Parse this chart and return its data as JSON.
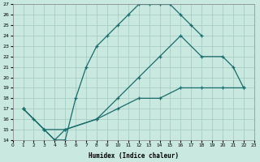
{
  "xlabel": "Humidex (Indice chaleur)",
  "ylabel": "",
  "bg_color": "#c8e8e0",
  "line_color": "#1a6b6b",
  "grid_color": "#a0c8c0",
  "xlim": [
    0,
    23
  ],
  "ylim": [
    14,
    27
  ],
  "xticks": [
    0,
    1,
    2,
    3,
    4,
    5,
    6,
    7,
    8,
    9,
    10,
    11,
    12,
    13,
    14,
    15,
    16,
    17,
    18,
    19,
    20,
    21,
    22,
    23
  ],
  "yticks": [
    14,
    15,
    16,
    17,
    18,
    19,
    20,
    21,
    22,
    23,
    24,
    25,
    26,
    27
  ],
  "line1_x": [
    1,
    2,
    3,
    4,
    5,
    6,
    7,
    8,
    9,
    10,
    11,
    12,
    13,
    14,
    15,
    16,
    17,
    18
  ],
  "line1_y": [
    17,
    16,
    15,
    14,
    14,
    18,
    21,
    23,
    24,
    25,
    26,
    27,
    27,
    27,
    27,
    26,
    25,
    24
  ],
  "line2_x": [
    1,
    3,
    4,
    5,
    8,
    10,
    12,
    14,
    16,
    18,
    20,
    21,
    22
  ],
  "line2_y": [
    17,
    15,
    14,
    15,
    16,
    18,
    20,
    22,
    24,
    22,
    22,
    21,
    19
  ],
  "line3_x": [
    1,
    3,
    5,
    8,
    10,
    12,
    14,
    16,
    18,
    20,
    22
  ],
  "line3_y": [
    17,
    15,
    15,
    16,
    17,
    18,
    18,
    19,
    19,
    19,
    19
  ]
}
